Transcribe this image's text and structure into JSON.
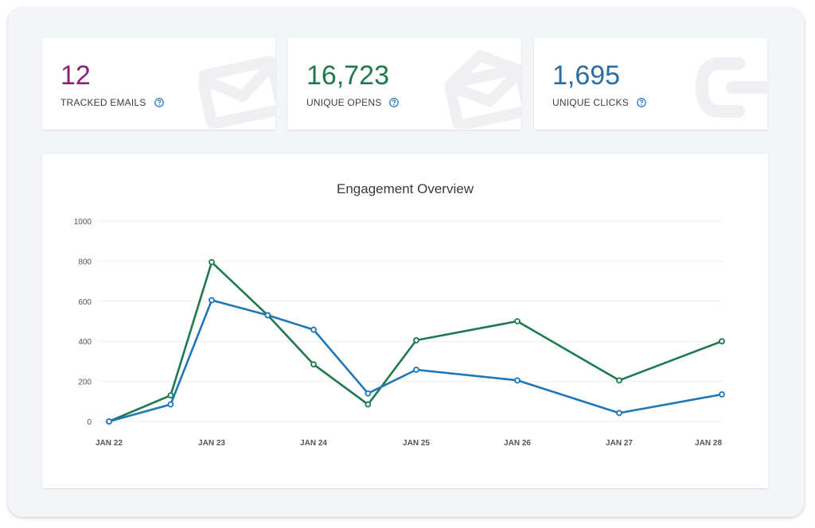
{
  "stats": {
    "tracked": {
      "value": "12",
      "label": "TRACKED EMAILS",
      "color": "#8b2276",
      "icon": "envelope-icon"
    },
    "opens": {
      "value": "16,723",
      "label": "UNIQUE OPENS",
      "color": "#1e7a4c",
      "icon": "open-envelope-icon"
    },
    "clicks": {
      "value": "1,695",
      "label": "UNIQUE CLICKS",
      "color": "#2b6da3",
      "icon": "cursor-click-icon"
    }
  },
  "help_icon": "question-circle-icon",
  "help_color": "#2b7bbd",
  "chart_data": {
    "type": "line",
    "title": "Engagement Overview",
    "xlabel": "",
    "ylabel": "",
    "ylim": [
      0,
      1000
    ],
    "yticks": [
      "0",
      "200",
      "400",
      "600",
      "800",
      "1000"
    ],
    "xticks": [
      "JAN 22",
      "JAN 23",
      "JAN 24",
      "JAN 25",
      "JAN 26",
      "JAN 27",
      "JAN 28"
    ],
    "grid": true,
    "series": [
      {
        "color": "#1e7a4c",
        "points": [
          [
            0,
            0
          ],
          [
            0.6,
            130
          ],
          [
            1,
            795
          ],
          [
            1.55,
            530
          ],
          [
            2,
            285
          ],
          [
            2.53,
            85
          ],
          [
            3,
            405
          ],
          [
            4,
            500
          ],
          [
            5,
            205
          ],
          [
            6,
            400
          ]
        ]
      },
      {
        "color": "#1f77b8",
        "points": [
          [
            0,
            0
          ],
          [
            0.6,
            85
          ],
          [
            1,
            605
          ],
          [
            1.55,
            530
          ],
          [
            2,
            458
          ],
          [
            2.53,
            140
          ],
          [
            3,
            258
          ],
          [
            4,
            205
          ],
          [
            5,
            42
          ],
          [
            6,
            135
          ]
        ]
      }
    ]
  }
}
